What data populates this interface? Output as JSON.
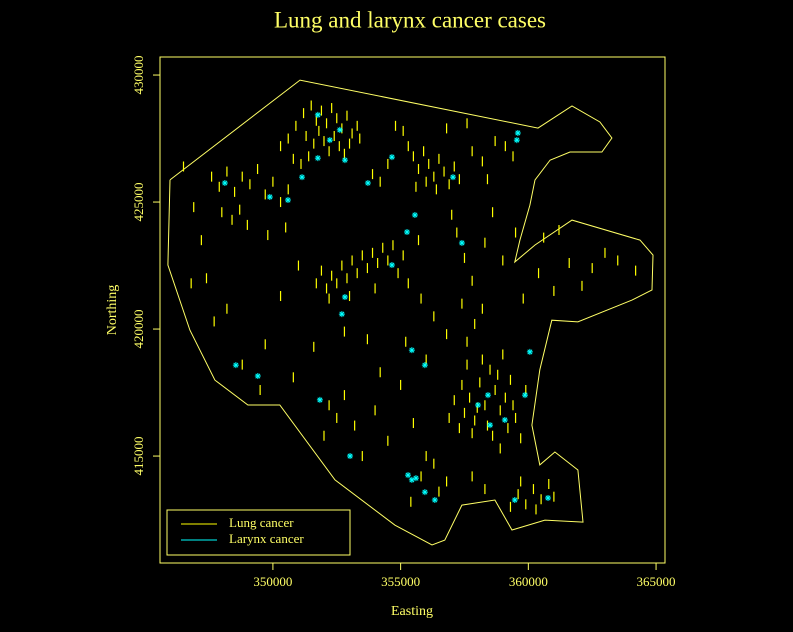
{
  "chart_data": {
    "type": "scatter",
    "title": "Lung and larynx cancer cases",
    "xlabel": "Easting",
    "ylabel": "Northing",
    "xlim": [
      345580,
      365350
    ],
    "ylim": [
      410790,
      430710
    ],
    "xticks": [
      350000,
      355000,
      360000,
      365000
    ],
    "yticks": [
      415000,
      420000,
      425000,
      430000
    ],
    "axis_color": "#ffff66",
    "legend": "lower left",
    "boundary": {
      "color": "#ffff66",
      "x": [
        345970,
        345890,
        346750,
        347730,
        349020,
        350270,
        352430,
        354780,
        356230,
        356730,
        357400,
        358690,
        359360,
        360650,
        362140,
        361940,
        361040,
        360450,
        360140,
        360450,
        360920,
        361940,
        364060,
        364840,
        364880,
        364370,
        361710,
        360260,
        359470,
        359670,
        360060,
        360260,
        360850,
        361630,
        362880,
        363270,
        362800,
        361710,
        360380,
        351060,
        345970
      ],
      "y": [
        425870,
        422520,
        419960,
        417990,
        417010,
        417010,
        414060,
        412280,
        411500,
        411690,
        413070,
        413270,
        412090,
        412480,
        412400,
        414450,
        415160,
        414650,
        416220,
        418390,
        420350,
        420280,
        421140,
        421540,
        422910,
        423500,
        424290,
        423310,
        422640,
        423500,
        424880,
        425870,
        426650,
        426970,
        426970,
        427520,
        428150,
        428780,
        427910,
        429800,
        425870
      ]
    },
    "series": [
      {
        "name": "Lung cancer",
        "color": "#ffff00",
        "marker": "dash",
        "x": [
          351200,
          351500,
          351700,
          351900,
          352100,
          352300,
          352500,
          352700,
          352900,
          353100,
          353300,
          351300,
          351600,
          351800,
          352000,
          352200,
          352400,
          352600,
          352800,
          353000,
          353400,
          350900,
          350600,
          350300,
          350800,
          351100,
          351400,
          347600,
          347900,
          348200,
          348500,
          348800,
          349100,
          349400,
          349700,
          350000,
          350300,
          350600,
          348000,
          348400,
          348700,
          349000,
          347200,
          346900,
          347400,
          346800,
          348200,
          347700,
          346500,
          355100,
          355300,
          355500,
          355700,
          355900,
          356100,
          356300,
          356500,
          356700,
          356900,
          357100,
          357300,
          355600,
          356000,
          356400,
          354500,
          354200,
          353900,
          357800,
          358200,
          358700,
          359100,
          359400,
          358400,
          357600,
          356800,
          354800,
          351700,
          351900,
          352100,
          352300,
          352500,
          352700,
          352900,
          353100,
          353300,
          353500,
          353700,
          353900,
          354100,
          354300,
          354500,
          354700,
          354900,
          355100,
          355300,
          352200,
          353000,
          354000,
          355700,
          350300,
          351000,
          349800,
          350500,
          357200,
          357500,
          357800,
          357400,
          357900,
          357600,
          358200,
          356800,
          356300,
          355800,
          357000,
          358300,
          359000,
          359500,
          358600,
          360600,
          361200,
          361600,
          362100,
          362500,
          363000,
          363500,
          364200,
          361000,
          360400,
          359800,
          357300,
          357500,
          357700,
          357900,
          358100,
          358300,
          358500,
          358700,
          358900,
          359100,
          359300,
          359500,
          357400,
          357600,
          357800,
          358000,
          358200,
          358400,
          358600,
          358800,
          359000,
          359200,
          359400,
          357100,
          356900,
          359700,
          359900,
          352200,
          352500,
          352800,
          353200,
          352000,
          353500,
          354000,
          354500,
          355000,
          355500,
          356000,
          355800,
          356300,
          356800,
          355400,
          356500,
          354200,
          355200,
          356000,
          353700,
          352800,
          351600,
          350800,
          349700,
          348800,
          349500,
          359300,
          359600,
          359900,
          360200,
          360500,
          360800,
          361000,
          359700,
          360300,
          358300,
          357800,
          358900
        ],
        "y": [
          428500,
          428800,
          428200,
          428600,
          428100,
          428700,
          428300,
          427900,
          428400,
          427700,
          428000,
          427600,
          427300,
          427800,
          427400,
          427000,
          427600,
          427200,
          426900,
          427300,
          427500,
          428000,
          427500,
          427200,
          426700,
          426500,
          426800,
          426000,
          425600,
          426200,
          425400,
          426000,
          425700,
          426300,
          425300,
          425800,
          425000,
          425500,
          424600,
          424300,
          424700,
          424100,
          423500,
          424800,
          422000,
          421800,
          420800,
          420300,
          426400,
          427800,
          427200,
          426800,
          426300,
          427000,
          426500,
          426000,
          426700,
          426200,
          425700,
          426400,
          425900,
          425600,
          425800,
          425500,
          426500,
          425800,
          426100,
          427000,
          426600,
          427400,
          427200,
          426800,
          425900,
          428100,
          427900,
          428000,
          421800,
          422300,
          421600,
          422100,
          421800,
          422500,
          422000,
          422700,
          422200,
          422900,
          422400,
          423000,
          422600,
          423200,
          422700,
          423300,
          422200,
          422900,
          421800,
          421200,
          421300,
          421600,
          423500,
          421300,
          422500,
          423700,
          424000,
          423800,
          422800,
          421900,
          421000,
          420200,
          419500,
          420800,
          419800,
          420500,
          421200,
          424500,
          423400,
          422700,
          423800,
          424600,
          423600,
          423900,
          422600,
          421700,
          422400,
          423000,
          422700,
          422300,
          421500,
          422200,
          421200,
          416100,
          416700,
          417300,
          416400,
          417900,
          417000,
          418400,
          417600,
          416800,
          417300,
          418000,
          416500,
          417800,
          418600,
          415900,
          416900,
          418800,
          416200,
          415800,
          418200,
          419000,
          416100,
          417000,
          417200,
          416500,
          415700,
          417600,
          417000,
          416500,
          417400,
          416200,
          415800,
          415000,
          416800,
          415600,
          417800,
          416300,
          415000,
          414200,
          414700,
          414000,
          413200,
          413600,
          418300,
          419500,
          418800,
          419600,
          419900,
          419300,
          418100,
          419400,
          418600,
          417600,
          413000,
          413500,
          413100,
          413700,
          413300,
          413900,
          413400,
          414000,
          412900,
          413700,
          414200,
          415300
        ]
      },
      {
        "name": "Larynx cancer",
        "color": "#00ffff",
        "marker": "star",
        "x": [
          351760,
          352620,
          352230,
          351760,
          351140,
          349880,
          350590,
          348120,
          352820,
          354660,
          353720,
          355560,
          355250,
          354660,
          352820,
          352700,
          355440,
          355950,
          349410,
          348550,
          355290,
          355440,
          355600,
          355950,
          356340,
          353020,
          357400,
          357050,
          359590,
          359550,
          358420,
          358030,
          358500,
          359080,
          359870,
          360060,
          359470,
          360770,
          351840
        ],
        "y": [
          428430,
          427840,
          427440,
          426730,
          425980,
          425200,
          425080,
          425750,
          426650,
          426770,
          425750,
          424490,
          423820,
          422520,
          421260,
          420590,
          419170,
          418580,
          418150,
          418580,
          414250,
          414060,
          414130,
          413580,
          413270,
          415000,
          423390,
          425980,
          427720,
          427440,
          417400,
          417010,
          416220,
          416420,
          417400,
          419100,
          413270,
          413350,
          417210
        ]
      }
    ]
  }
}
